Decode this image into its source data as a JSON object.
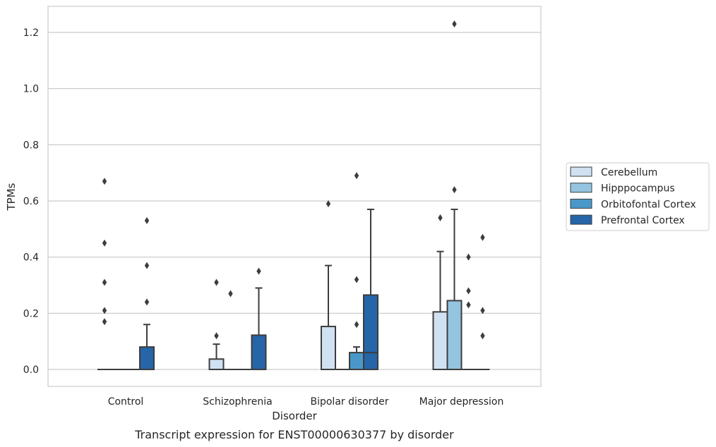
{
  "chart_data": {
    "type": "box",
    "caption": "Transcript expression for ENST00000630377 by disorder",
    "xlabel": "Disorder",
    "ylabel": "TPMs",
    "ylim": [
      -0.06,
      1.29
    ],
    "yticks": [
      0.0,
      0.2,
      0.4,
      0.6,
      0.8,
      1.0,
      1.2
    ],
    "ytick_labels": [
      "0.0",
      "0.2",
      "0.4",
      "0.6",
      "0.8",
      "1.0",
      "1.2"
    ],
    "grid": true,
    "legend_position": "right",
    "categories": [
      "Control",
      "Schizophrenia",
      "Bipolar disorder",
      "Major depression"
    ],
    "series": [
      {
        "name": "Cerebellum",
        "color": "#d0e1f2",
        "boxes": [
          {
            "whislo": 0,
            "q1": 0,
            "med": 0,
            "q3": 0,
            "whishi": 0,
            "fliers": [
              0.17,
              0.21,
              0.31,
              0.45,
              0.67
            ]
          },
          {
            "whislo": 0,
            "q1": 0,
            "med": 0,
            "q3": 0.037,
            "whishi": 0.09,
            "fliers": [
              0.12,
              0.31
            ]
          },
          {
            "whislo": 0,
            "q1": 0,
            "med": 0,
            "q3": 0.153,
            "whishi": 0.37,
            "fliers": [
              0.59
            ]
          },
          {
            "whislo": 0,
            "q1": 0,
            "med": 0,
            "q3": 0.205,
            "whishi": 0.42,
            "fliers": [
              0.54
            ]
          }
        ]
      },
      {
        "name": "Hipppocampus",
        "color": "#94c4df",
        "boxes": [
          {
            "whislo": 0,
            "q1": 0,
            "med": 0,
            "q3": 0,
            "whishi": 0,
            "fliers": []
          },
          {
            "whislo": 0,
            "q1": 0,
            "med": 0,
            "q3": 0,
            "whishi": 0,
            "fliers": [
              0.27
            ]
          },
          {
            "whislo": 0,
            "q1": 0,
            "med": 0,
            "q3": 0,
            "whishi": 0,
            "fliers": []
          },
          {
            "whislo": 0,
            "q1": 0,
            "med": 0,
            "q3": 0.245,
            "whishi": 0.57,
            "fliers": [
              0.64,
              1.23
            ]
          }
        ]
      },
      {
        "name": "Orbitofontal Cortex",
        "color": "#4a98c9",
        "boxes": [
          {
            "whislo": 0,
            "q1": 0,
            "med": 0,
            "q3": 0,
            "whishi": 0,
            "fliers": []
          },
          {
            "whislo": 0,
            "q1": 0,
            "med": 0,
            "q3": 0,
            "whishi": 0,
            "fliers": []
          },
          {
            "whislo": 0,
            "q1": 0,
            "med": 0,
            "q3": 0.06,
            "whishi": 0.08,
            "fliers": [
              0.16,
              0.32,
              0.69
            ]
          },
          {
            "whislo": 0,
            "q1": 0,
            "med": 0,
            "q3": 0,
            "whishi": 0,
            "fliers": [
              0.23,
              0.28,
              0.4
            ]
          }
        ]
      },
      {
        "name": "Prefrontal Cortex",
        "color": "#2565a8",
        "boxes": [
          {
            "whislo": 0,
            "q1": 0,
            "med": 0,
            "q3": 0.08,
            "whishi": 0.16,
            "fliers": [
              0.24,
              0.37,
              0.53
            ]
          },
          {
            "whislo": 0,
            "q1": 0,
            "med": 0,
            "q3": 0.122,
            "whishi": 0.29,
            "fliers": [
              0.35
            ]
          },
          {
            "whislo": 0,
            "q1": 0,
            "med": 0.06,
            "q3": 0.265,
            "whishi": 0.57,
            "fliers": []
          },
          {
            "whislo": 0,
            "q1": 0,
            "med": 0,
            "q3": 0,
            "whishi": 0,
            "fliers": [
              0.12,
              0.21,
              0.47
            ]
          }
        ]
      }
    ]
  }
}
